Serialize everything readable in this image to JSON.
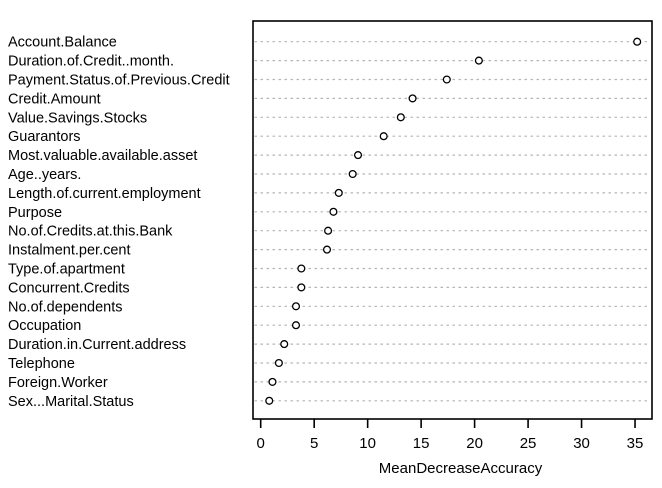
{
  "window": {
    "background": "#ffffff"
  },
  "chart_data": {
    "type": "scatter",
    "variant": "dotchart-variable-importance",
    "title": "",
    "xlabel": "MeanDecreaseAccuracy",
    "ylabel": "",
    "xlim": [
      0,
      36.6
    ],
    "xticks": [
      0,
      5,
      10,
      15,
      20,
      25,
      30,
      35
    ],
    "grid": "dashed-horizontal",
    "legend": "none",
    "categories": [
      "Account.Balance",
      "Duration.of.Credit..month.",
      "Payment.Status.of.Previous.Credit",
      "Credit.Amount",
      "Value.Savings.Stocks",
      "Guarantors",
      "Most.valuable.available.asset",
      "Age..years.",
      "Length.of.current.employment",
      "Purpose",
      "No.of.Credits.at.this.Bank",
      "Instalment.per.cent",
      "Type.of.apartment",
      "Concurrent.Credits",
      "No.of.dependents",
      "Occupation",
      "Duration.in.Current.address",
      "Telephone",
      "Foreign.Worker",
      "Sex...Marital.Status"
    ],
    "values": [
      35.2,
      20.4,
      17.4,
      14.2,
      13.1,
      11.5,
      9.1,
      8.6,
      7.3,
      6.8,
      6.3,
      6.2,
      3.8,
      3.8,
      3.3,
      3.3,
      2.2,
      1.7,
      1.1,
      0.8
    ],
    "point_style": {
      "shape": "open-circle",
      "stroke": "#000000",
      "fill": "#ffffff"
    },
    "colors": {
      "background": "#ffffff",
      "box": "#000000",
      "grid": "#b4b4b4",
      "text": "#000000"
    }
  }
}
